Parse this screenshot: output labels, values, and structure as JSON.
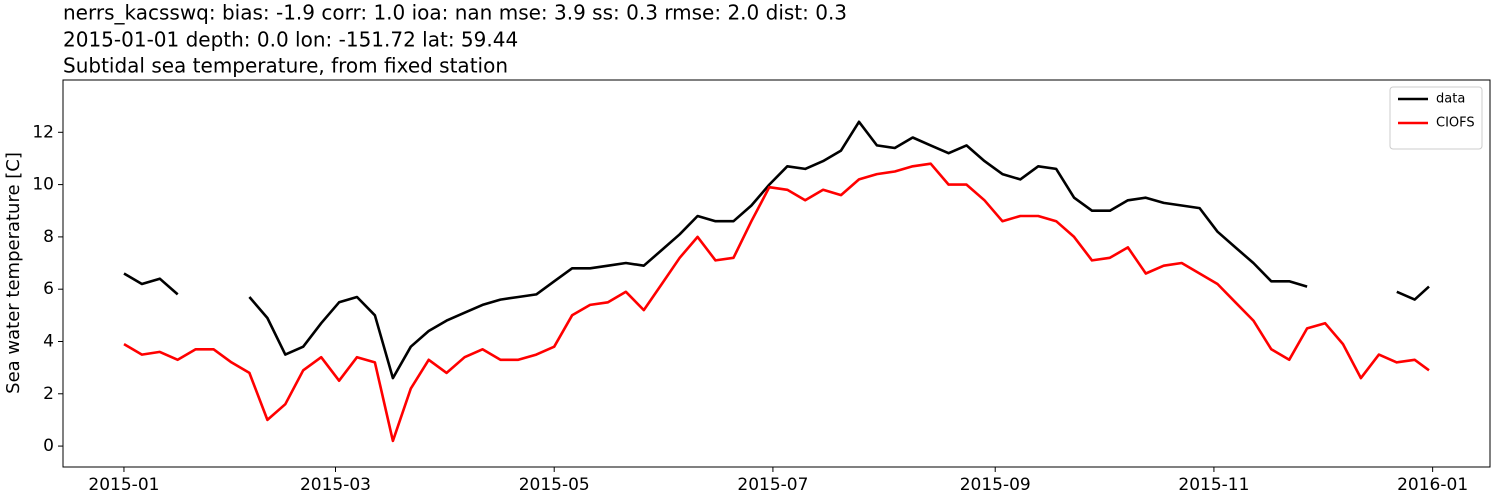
{
  "chart_data": {
    "type": "line",
    "title": [
      "nerrs_kacsswq: bias: -1.9  corr: 1.0  ioa: nan  mse: 3.9  ss: 0.3  rmse: 2.0  dist: 0.3",
      "2015-01-01 depth: 0.0 lon: -151.72 lat: 59.44",
      "Subtidal sea temperature, from fixed station"
    ],
    "ylabel": "Sea water temperature [C]",
    "x": [
      0,
      5,
      10,
      15,
      20,
      25,
      30,
      35,
      40,
      45,
      50,
      55,
      60,
      65,
      70,
      75,
      80,
      85,
      90,
      95,
      100,
      105,
      110,
      115,
      120,
      125,
      130,
      135,
      140,
      145,
      150,
      155,
      160,
      165,
      170,
      175,
      180,
      185,
      190,
      195,
      200,
      205,
      210,
      215,
      220,
      225,
      230,
      235,
      240,
      245,
      250,
      255,
      260,
      265,
      270,
      275,
      280,
      285,
      290,
      295,
      300,
      305,
      310,
      315,
      320,
      325,
      330,
      335,
      340,
      345,
      350,
      355,
      360,
      364
    ],
    "series": [
      {
        "name": "data",
        "color": "#000000",
        "values": [
          6.6,
          6.2,
          6.4,
          5.8,
          null,
          null,
          null,
          5.7,
          4.9,
          3.5,
          3.8,
          4.7,
          5.5,
          5.7,
          5.0,
          2.6,
          3.8,
          4.4,
          4.8,
          5.1,
          5.4,
          5.6,
          5.7,
          5.8,
          6.3,
          6.8,
          6.8,
          6.9,
          7.0,
          6.9,
          7.5,
          8.1,
          8.8,
          8.6,
          8.6,
          9.2,
          10.0,
          10.7,
          10.6,
          10.9,
          11.3,
          12.4,
          11.5,
          11.4,
          11.8,
          11.5,
          11.2,
          11.5,
          10.9,
          10.4,
          10.2,
          10.7,
          10.6,
          9.5,
          9.0,
          9.0,
          9.4,
          9.5,
          9.3,
          9.2,
          9.1,
          8.2,
          7.6,
          7.0,
          6.3,
          6.3,
          6.1,
          null,
          null,
          null,
          null,
          5.9,
          5.6,
          6.1
        ]
      },
      {
        "name": "CIOFS",
        "color": "#ff0000",
        "values": [
          3.9,
          3.5,
          3.6,
          3.3,
          3.7,
          3.7,
          3.2,
          2.8,
          1.0,
          1.6,
          2.9,
          3.4,
          2.5,
          3.4,
          3.2,
          0.2,
          2.2,
          3.3,
          2.8,
          3.4,
          3.7,
          3.3,
          3.3,
          3.5,
          3.8,
          5.0,
          5.4,
          5.5,
          5.9,
          5.2,
          6.2,
          7.2,
          8.0,
          7.1,
          7.2,
          8.6,
          9.9,
          9.8,
          9.4,
          9.8,
          9.6,
          10.2,
          10.4,
          10.5,
          10.7,
          10.8,
          10.0,
          10.0,
          9.4,
          8.6,
          8.8,
          8.8,
          8.6,
          8.0,
          7.1,
          7.2,
          7.6,
          6.6,
          6.9,
          7.0,
          6.6,
          6.2,
          5.5,
          4.8,
          3.7,
          3.3,
          4.5,
          4.7,
          3.9,
          2.6,
          3.5,
          3.2,
          3.3,
          2.9
        ]
      }
    ],
    "xlim": [
      -17,
      381
    ],
    "xticks": [
      {
        "value": 0,
        "label": "2015-01"
      },
      {
        "value": 59,
        "label": "2015-03"
      },
      {
        "value": 120,
        "label": "2015-05"
      },
      {
        "value": 181,
        "label": "2015-07"
      },
      {
        "value": 243,
        "label": "2015-09"
      },
      {
        "value": 304,
        "label": "2015-11"
      },
      {
        "value": 365,
        "label": "2016-01"
      }
    ],
    "ylim": [
      -0.8,
      14.0
    ],
    "yticks": [
      0,
      2,
      4,
      6,
      8,
      10,
      12
    ],
    "grid": false,
    "legend": "upper right"
  }
}
